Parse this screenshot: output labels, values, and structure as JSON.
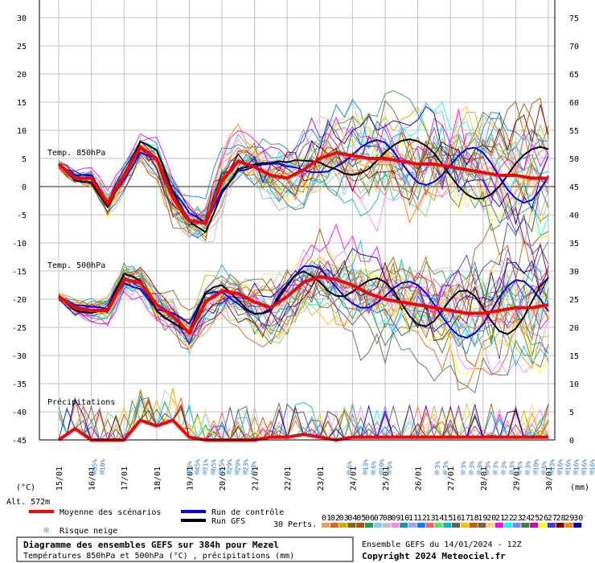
{
  "chart_data": {
    "type": "line",
    "title": "Diagramme des ensembles GEFS sur 384h pour Mezel",
    "subtitle": "Températures 850hPa et 500hPa (°C) , précipitations (mm)",
    "run_info": "Ensemble GEFS du 14/01/2024 - 12Z",
    "copyright": "Copyright 2024 Meteociel.fr",
    "altitude": "Alt. 572m",
    "left_axis_unit": "(°C)",
    "right_axis_unit": "(mm)",
    "left_ticks": [
      "30",
      "25",
      "20",
      "15",
      "10",
      "5",
      "0",
      "-5",
      "-10",
      "-15",
      "-20",
      "-25",
      "-30",
      "-35",
      "-40",
      "-45"
    ],
    "right_ticks": [
      "75",
      "70",
      "65",
      "60",
      "55",
      "50",
      "45",
      "40",
      "35",
      "30",
      "25",
      "20",
      "15",
      "10",
      "5",
      "0"
    ],
    "ylim_left": [
      -45,
      30
    ],
    "ylim_right": [
      0,
      75
    ],
    "x_labels": [
      "15/01",
      "16/01",
      "17/01",
      "18/01",
      "19/01",
      "20/01",
      "21/01",
      "22/01",
      "23/01",
      "24/01",
      "25/01",
      "26/01",
      "27/01",
      "28/01",
      "29/01",
      "30/01"
    ],
    "panel_labels": {
      "t850": "Temp. 850hPa",
      "t500": "Temp. 500hPa",
      "precip": "Précipitations"
    },
    "series": [
      {
        "name": "Moyenne T850",
        "x": [
          0,
          0.5,
          1,
          1.5,
          2,
          2.5,
          3,
          3.5,
          4,
          4.5,
          5,
          5.5,
          6,
          6.5,
          7,
          7.5,
          8,
          8.5,
          9,
          9.5,
          10,
          10.5,
          11,
          11.5,
          12,
          12.5,
          13,
          13.5,
          14,
          14.5,
          15,
          15.2
        ],
        "values": [
          4,
          1.5,
          1.5,
          -3,
          2,
          7,
          5,
          -2,
          -6,
          -6.5,
          1,
          4.5,
          3.5,
          2,
          1.5,
          3,
          5,
          6,
          5.5,
          5,
          5,
          4.5,
          4,
          4,
          3.5,
          3,
          2.5,
          2,
          2,
          1.5,
          1.5,
          1
        ]
      },
      {
        "name": "Moyenne T500",
        "x": [
          0,
          0.5,
          1,
          1.5,
          2,
          2.5,
          3,
          3.5,
          4,
          4.5,
          5,
          5.5,
          6,
          6.5,
          7,
          7.5,
          8,
          8.5,
          9,
          9.5,
          10,
          10.5,
          11,
          11.5,
          12,
          12.5,
          13,
          13.5,
          14,
          14.5,
          15,
          15.2
        ],
        "values": [
          -19.5,
          -21.5,
          -22,
          -22,
          -16.5,
          -17,
          -21,
          -23,
          -26,
          -20.5,
          -18.5,
          -19,
          -20.5,
          -21.5,
          -19.5,
          -17,
          -16,
          -16.5,
          -17.5,
          -19,
          -20,
          -20.5,
          -21,
          -21.5,
          -22,
          -22.5,
          -22.5,
          -22,
          -21.5,
          -21.5,
          -21,
          -21
        ]
      },
      {
        "name": "Moyenne précipitations",
        "x": [
          0,
          0.5,
          1,
          1.5,
          2,
          2.5,
          3,
          3.5,
          4,
          4.5,
          5,
          5.5,
          6,
          6.5,
          7,
          7.5,
          8,
          8.5,
          9,
          9.5,
          10,
          10.5,
          11,
          11.5,
          12,
          12.5,
          13,
          13.5,
          14,
          14.5,
          15,
          15.2
        ],
        "values": [
          0,
          2,
          0,
          0,
          0,
          3.5,
          2.5,
          3.5,
          0.5,
          0,
          0,
          0,
          0,
          0.5,
          0.5,
          1,
          0.5,
          0,
          0.5,
          0.5,
          0.5,
          0.5,
          0.5,
          0.5,
          0.5,
          0.5,
          0.5,
          0.5,
          0.5,
          0.5,
          0.5,
          0
        ]
      }
    ],
    "snow_risk": [
      {
        "day_index": 1.1,
        "labels": [
          "55%",
          "10%"
        ]
      },
      {
        "day_index": 4.0,
        "labels": [
          "6%",
          "45%",
          "71%",
          "65%",
          "55%",
          "29%",
          "29%",
          "23%",
          "3%"
        ]
      },
      {
        "day_index": 8.9,
        "labels": [
          "6%"
        ]
      },
      {
        "day_index": 9.4,
        "labels": [
          "13%",
          "6%",
          "10%",
          "6%"
        ]
      },
      {
        "day_index": 11.6,
        "labels": [
          "3%",
          "3%"
        ]
      },
      {
        "day_index": 12.4,
        "labels": [
          "3%",
          "3%",
          "3%",
          "3%",
          "3%",
          "3%",
          "3%",
          "6%",
          "3%",
          "10%",
          "6%",
          "13%",
          "16%",
          "16%",
          "16%",
          "16%",
          "16%",
          "16%",
          "16%",
          "16%",
          "16%"
        ]
      }
    ],
    "legend": {
      "mean": "Moyenne des scénarios",
      "control": "Run de contrôle",
      "gfs": "Run GFS",
      "snow": "Risque neige",
      "perts": "30 Perts.",
      "pert_numbers": [
        "01",
        "02",
        "03",
        "04",
        "05",
        "06",
        "07",
        "08",
        "09",
        "10",
        "11",
        "12",
        "13",
        "14",
        "15",
        "16",
        "17",
        "18",
        "19",
        "20",
        "21",
        "22",
        "23",
        "24",
        "25",
        "26",
        "27",
        "28",
        "29",
        "30"
      ],
      "pert_colors": [
        "#e8a058",
        "#e06020",
        "#c8b400",
        "#8c6400",
        "#b05000",
        "#20a048",
        "#80c8ff",
        "#c0c0c0",
        "#ff80ff",
        "#00a0a0",
        "#a0a0ff",
        "#0080ff",
        "#ff6060",
        "#60e060",
        "#00c0c0",
        "#606060",
        "#ffc000",
        "#c06000",
        "#806040",
        "#ffd080",
        "#ff00ff",
        "#00ffff",
        "#8080ff",
        "#408040",
        "#c000c0",
        "#ffff00",
        "#4040c0",
        "#800000",
        "#ff8000",
        "#0000c0"
      ]
    },
    "colors": {
      "mean": "#ff0000",
      "control": "#0000ff",
      "gfs": "#000000",
      "grid": "#c0c0c0",
      "snow": "#6aa8d8"
    }
  }
}
